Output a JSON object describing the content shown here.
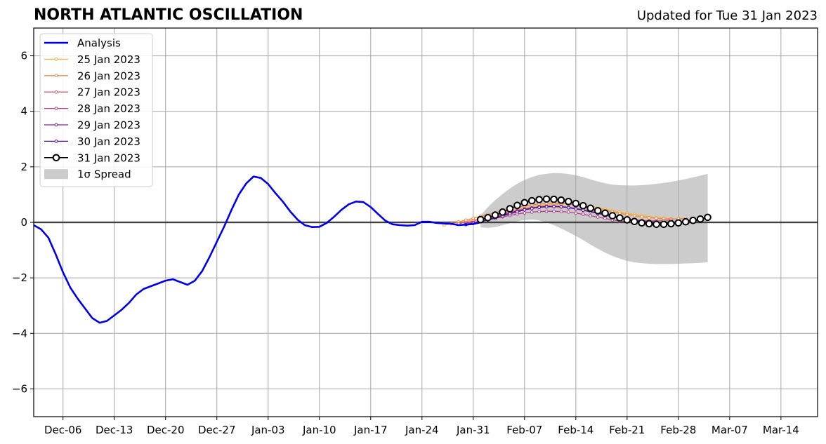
{
  "header": {
    "title": "NORTH ATLANTIC OSCILLATION",
    "subtitle": "Updated for Tue 31 Jan 2023"
  },
  "chart_data": {
    "type": "line",
    "title": "NORTH ATLANTIC OSCILLATION",
    "subtitle": "Updated for Tue 31 Jan 2023",
    "xlabel": "",
    "ylabel": "",
    "x_type": "date",
    "xlim": [
      "2022-12-02",
      "2023-03-19"
    ],
    "ylim": [
      -7,
      7
    ],
    "grid": true,
    "legend_position": "top-left",
    "x_tick_labels": [
      "Dec-06",
      "Dec-13",
      "Dec-20",
      "Dec-27",
      "Jan-03",
      "Jan-10",
      "Jan-17",
      "Jan-24",
      "Jan-31",
      "Feb-07",
      "Feb-14",
      "Feb-21",
      "Feb-28",
      "Mar-07",
      "Mar-14"
    ],
    "x_tick_dates": [
      "2022-12-06",
      "2022-12-13",
      "2022-12-20",
      "2022-12-27",
      "2023-01-03",
      "2023-01-10",
      "2023-01-17",
      "2023-01-24",
      "2023-01-31",
      "2023-02-07",
      "2023-02-14",
      "2023-02-21",
      "2023-02-28",
      "2023-03-07",
      "2023-03-14"
    ],
    "y_ticks": [
      -6,
      -4,
      -2,
      0,
      2,
      4,
      6
    ],
    "y_tick_labels": [
      "−6",
      "−4",
      "−2",
      "0",
      "2",
      "4",
      "6"
    ],
    "analysis": {
      "name": "Analysis",
      "color": "#0000ee",
      "start_date": "2022-12-02",
      "values": [
        -0.1,
        -0.25,
        -0.55,
        -1.15,
        -1.8,
        -2.35,
        -2.75,
        -3.1,
        -3.45,
        -3.62,
        -3.55,
        -3.35,
        -3.15,
        -2.9,
        -2.6,
        -2.4,
        -2.3,
        -2.2,
        -2.1,
        -2.05,
        -2.15,
        -2.25,
        -2.1,
        -1.75,
        -1.25,
        -0.7,
        -0.15,
        0.45,
        1.0,
        1.4,
        1.65,
        1.6,
        1.38,
        1.05,
        0.75,
        0.4,
        0.1,
        -0.1,
        -0.17,
        -0.16,
        -0.02,
        0.2,
        0.45,
        0.65,
        0.75,
        0.73,
        0.55,
        0.3,
        0.06,
        -0.07,
        -0.1,
        -0.12,
        -0.1,
        0.02,
        0.02,
        -0.02,
        -0.04,
        -0.05,
        -0.1,
        -0.08,
        -0.06,
        0.0
      ]
    },
    "forecasts": [
      {
        "name": "25 Jan 2023",
        "color": "#f5b335",
        "start_date": "2023-01-27",
        "values": [
          -0.1,
          -0.05,
          0.0,
          0.04,
          0.09,
          0.14,
          0.2,
          0.27,
          0.34,
          0.4,
          0.46,
          0.51,
          0.56,
          0.6,
          0.63,
          0.65,
          0.66,
          0.66,
          0.64,
          0.61,
          0.57,
          0.52,
          0.47,
          0.42,
          0.37,
          0.32,
          0.28,
          0.24,
          0.2,
          0.17,
          0.15,
          0.13,
          0.12,
          0.12
        ]
      },
      {
        "name": "26 Jan 2023",
        "color": "#ec8a49",
        "start_date": "2023-01-28",
        "values": [
          -0.05,
          0.02,
          0.08,
          0.15,
          0.22,
          0.28,
          0.35,
          0.42,
          0.48,
          0.54,
          0.59,
          0.63,
          0.66,
          0.68,
          0.69,
          0.68,
          0.66,
          0.63,
          0.59,
          0.54,
          0.49,
          0.43,
          0.38,
          0.33,
          0.28,
          0.24,
          0.2,
          0.17,
          0.15,
          0.13,
          0.12,
          0.13,
          0.14
        ]
      },
      {
        "name": "27 Jan 2023",
        "color": "#d95f6e",
        "start_date": "2023-01-29",
        "values": [
          -0.05,
          0.0,
          0.05,
          0.11,
          0.17,
          0.24,
          0.31,
          0.37,
          0.43,
          0.48,
          0.52,
          0.55,
          0.56,
          0.56,
          0.55,
          0.52,
          0.48,
          0.43,
          0.38,
          0.32,
          0.26,
          0.21,
          0.16,
          0.12,
          0.09,
          0.07,
          0.06,
          0.06,
          0.07,
          0.08
        ]
      },
      {
        "name": "28 Jan 2023",
        "color": "#b63d8e",
        "start_date": "2023-01-30",
        "values": [
          -0.05,
          0.0,
          0.05,
          0.1,
          0.15,
          0.2,
          0.25,
          0.3,
          0.34,
          0.37,
          0.39,
          0.4,
          0.4,
          0.39,
          0.37,
          0.33,
          0.29,
          0.24,
          0.19,
          0.14,
          0.09,
          0.05,
          0.02,
          -0.01,
          -0.03,
          -0.04
        ]
      },
      {
        "name": "29 Jan 2023",
        "color": "#8b1fa8",
        "start_date": "2023-01-30",
        "values": [
          -0.08,
          -0.03,
          0.03,
          0.1,
          0.18,
          0.26,
          0.34,
          0.41,
          0.47,
          0.52,
          0.56,
          0.58,
          0.58,
          0.57,
          0.54,
          0.5,
          0.45,
          0.4,
          0.34,
          0.28,
          0.22,
          0.17,
          0.12,
          0.08,
          0.05,
          0.03,
          0.02
        ]
      },
      {
        "name": "30 Jan 2023",
        "color": "#5a0f99",
        "start_date": "2023-01-30",
        "values": [
          -0.08,
          -0.04,
          0.02,
          0.08,
          0.15,
          0.23,
          0.31,
          0.38,
          0.45,
          0.5,
          0.54,
          0.56,
          0.57,
          0.56,
          0.53,
          0.49,
          0.44,
          0.38,
          0.32,
          0.26,
          0.2,
          0.14,
          0.09,
          0.05,
          0.02,
          0.0,
          -0.01
        ]
      },
      {
        "name": "31 Jan 2023",
        "color": "#000000",
        "start_date": "2023-02-01",
        "values": [
          0.1,
          0.17,
          0.26,
          0.37,
          0.49,
          0.61,
          0.71,
          0.78,
          0.82,
          0.84,
          0.83,
          0.8,
          0.75,
          0.68,
          0.6,
          0.51,
          0.42,
          0.33,
          0.24,
          0.16,
          0.09,
          0.03,
          -0.02,
          -0.05,
          -0.07,
          -0.07,
          -0.05,
          -0.02,
          0.02,
          0.07,
          0.12,
          0.18
        ]
      }
    ],
    "spread": {
      "name": "1σ Spread",
      "color": "#cccccc",
      "start_date": "2023-02-01",
      "upper": [
        0.25,
        0.55,
        0.8,
        1.02,
        1.22,
        1.39,
        1.53,
        1.63,
        1.71,
        1.75,
        1.78,
        1.77,
        1.74,
        1.7,
        1.63,
        1.55,
        1.47,
        1.41,
        1.36,
        1.34,
        1.33,
        1.33,
        1.34,
        1.36,
        1.39,
        1.42,
        1.46,
        1.51,
        1.56,
        1.62,
        1.68,
        1.75
      ],
      "lower": [
        -0.18,
        -0.2,
        -0.17,
        -0.1,
        -0.03,
        0.04,
        0.08,
        0.1,
        0.07,
        0.0,
        -0.1,
        -0.22,
        -0.35,
        -0.49,
        -0.64,
        -0.8,
        -0.95,
        -1.09,
        -1.21,
        -1.31,
        -1.39,
        -1.44,
        -1.47,
        -1.49,
        -1.5,
        -1.5,
        -1.5,
        -1.49,
        -1.48,
        -1.47,
        -1.46,
        -1.44
      ]
    }
  }
}
